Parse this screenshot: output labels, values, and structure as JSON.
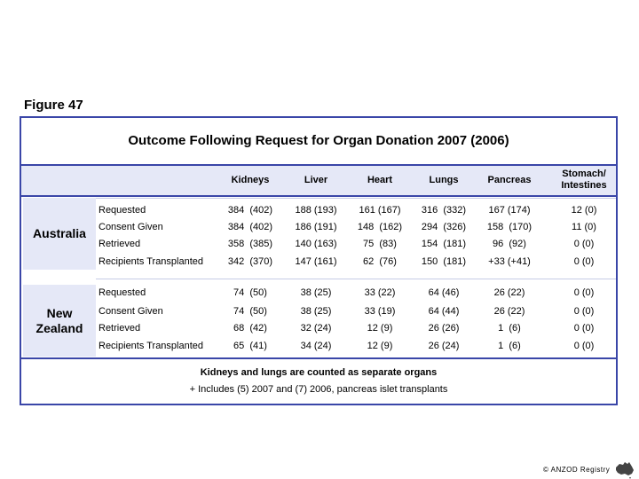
{
  "figure_label": "Figure 47",
  "title": "Outcome Following Request for Organ Donation  2007 (2006)",
  "columns": [
    "Kidneys",
    "Liver",
    "Heart",
    "Lungs",
    "Pancreas",
    "Stomach/",
    "Intestines"
  ],
  "groups": [
    {
      "country": [
        "Australia"
      ],
      "rows": [
        {
          "label": "Requested",
          "cells": [
            "384  (402)",
            "188 (193)",
            "161 (167)",
            "316  (332)",
            "167 (174)",
            "12 (0)"
          ]
        },
        {
          "label": "Consent Given",
          "cells": [
            "384  (402)",
            "186 (191)",
            "148  (162)",
            "294  (326)",
            "158  (170)",
            "11 (0)"
          ]
        },
        {
          "label": "Retrieved",
          "cells": [
            "358  (385)",
            "140 (163)",
            "75  (83)",
            "154  (181)",
            "96  (92)",
            "0 (0)"
          ]
        },
        {
          "label": "Recipients Transplanted",
          "cells": [
            "342  (370)",
            "147 (161)",
            "62  (76)",
            "150  (181)",
            "+33 (+41)",
            "0 (0)"
          ]
        }
      ]
    },
    {
      "country": [
        "New",
        "Zealand"
      ],
      "rows": [
        {
          "label": "Requested",
          "cells": [
            "74  (50)",
            "38 (25)",
            "33 (22)",
            "64 (46)",
            "26 (22)",
            "0 (0)"
          ]
        },
        {
          "label": "Consent Given",
          "cells": [
            "74  (50)",
            "38 (25)",
            "33 (19)",
            "64 (44)",
            "26 (22)",
            "0 (0)"
          ]
        },
        {
          "label": "Retrieved",
          "cells": [
            "68  (42)",
            "32 (24)",
            "12 (9)",
            "26 (26)",
            "1  (6)",
            "0 (0)"
          ]
        },
        {
          "label": "Recipients Transplanted",
          "cells": [
            "65  (41)",
            "34 (24)",
            "12 (9)",
            "26 (24)",
            "1  (6)",
            "0 (0)"
          ]
        }
      ]
    }
  ],
  "footnote_bold": "Kidneys and lungs are counted as separate organs",
  "footnote": "+ Includes (5) 2007 and (7) 2006, pancreas islet transplants",
  "logo_text": "© ANZOD Registry",
  "accent_color": "#3a46a8",
  "band_color": "#e5e8f7"
}
